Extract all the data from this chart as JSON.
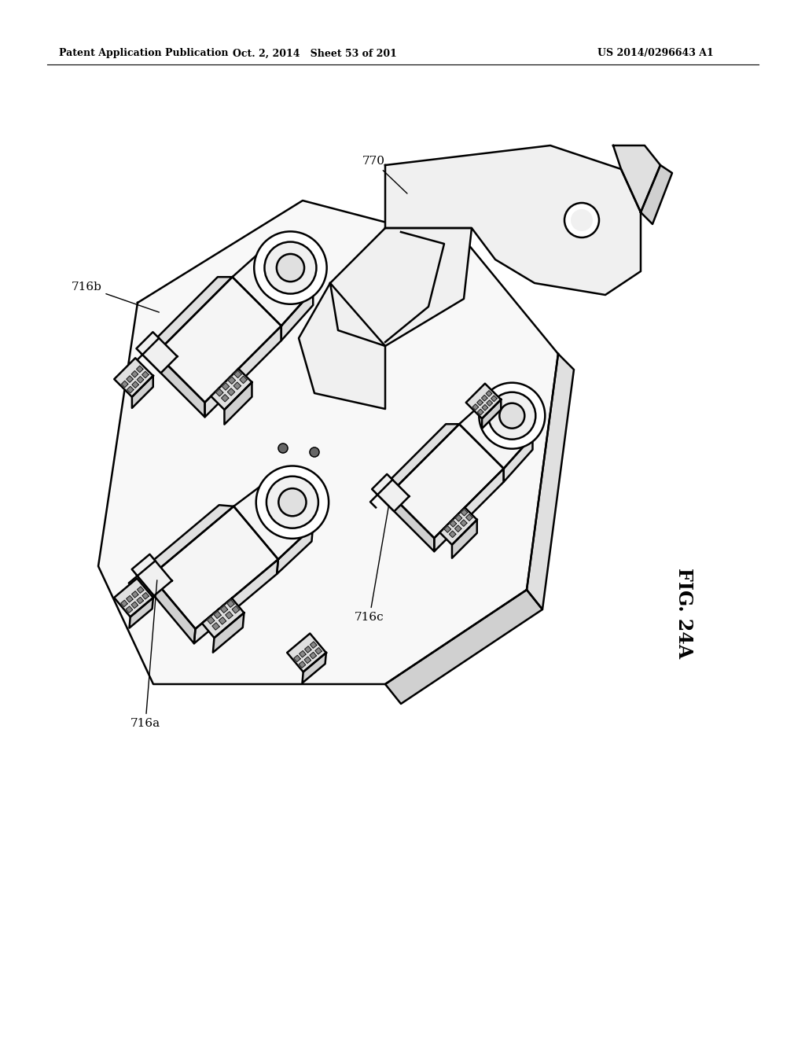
{
  "background_color": "#ffffff",
  "header_left": "Patent Application Publication",
  "header_mid": "Oct. 2, 2014   Sheet 53 of 201",
  "header_right": "US 2014/0296643 A1",
  "figure_label": "FIG. 24A",
  "line_color": "#000000",
  "line_width": 1.8,
  "fill_light": "#f0f0f0",
  "fill_mid": "#e0e0e0",
  "fill_dark": "#d0d0d0",
  "fill_white": "#ffffff"
}
